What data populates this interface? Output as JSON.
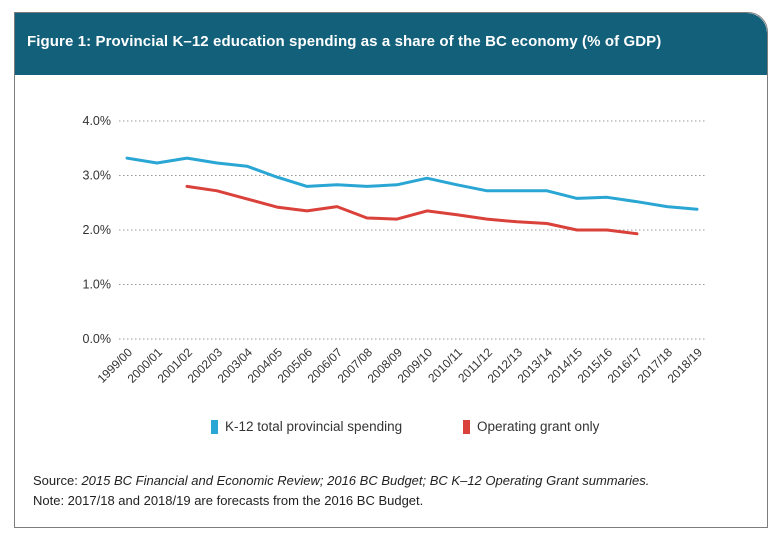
{
  "figure": {
    "title": "Figure 1: Provincial K–12 education spending as a share of the BC economy (% of GDP)"
  },
  "chart_data": {
    "type": "line",
    "categories": [
      "1999/00",
      "2000/01",
      "2001/02",
      "2002/03",
      "2003/04",
      "2004/05",
      "2005/06",
      "2006/07",
      "2007/08",
      "2008/09",
      "2009/10",
      "2010/11",
      "2011/12",
      "2012/13",
      "2013/14",
      "2014/15",
      "2015/16",
      "2016/17",
      "2017/18",
      "2018/19"
    ],
    "series": [
      {
        "name": "K-12 total provincial spending",
        "color": "#2aa6d4",
        "values": [
          3.32,
          3.23,
          3.32,
          3.23,
          3.17,
          2.97,
          2.8,
          2.83,
          2.8,
          2.83,
          2.95,
          2.83,
          2.72,
          2.72,
          2.72,
          2.58,
          2.6,
          2.52,
          2.43,
          2.38
        ]
      },
      {
        "name": "Operating grant only",
        "color": "#d9413a",
        "values": [
          null,
          null,
          2.8,
          2.72,
          2.57,
          2.42,
          2.35,
          2.43,
          2.22,
          2.2,
          2.35,
          2.28,
          2.2,
          2.15,
          2.12,
          2.0,
          2.0,
          1.93,
          null,
          null
        ]
      }
    ],
    "y_ticks": [
      "0.0%",
      "1.0%",
      "2.0%",
      "3.0%",
      "4.0%"
    ],
    "ylim": [
      0,
      4
    ],
    "grid": true,
    "legend_position": "bottom"
  },
  "notes": {
    "source_label": "Source:",
    "source_text": "2015 BC Financial and Economic Review; 2016 BC Budget; BC K–12 Operating Grant summaries.",
    "note_text": "Note: 2017/18 and 2018/19 are forecasts from the 2016 BC Budget."
  }
}
